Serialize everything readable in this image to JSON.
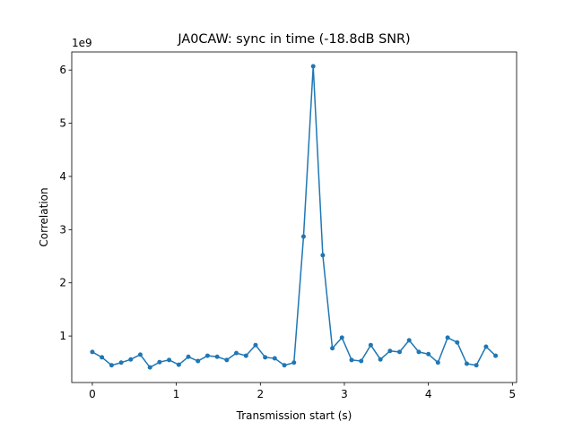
{
  "chart_data": {
    "type": "line",
    "title": "JA0CAW: sync in time (-18.8dB SNR)",
    "x_label": "Transmission start (s)",
    "y_label": "Correlation",
    "y_offset_label": "1e9",
    "x": [
      0,
      0.114,
      0.229,
      0.343,
      0.457,
      0.571,
      0.686,
      0.8,
      0.914,
      1.029,
      1.143,
      1.257,
      1.371,
      1.486,
      1.6,
      1.714,
      1.829,
      1.943,
      2.057,
      2.171,
      2.286,
      2.4,
      2.514,
      2.629,
      2.743,
      2.857,
      2.971,
      3.086,
      3.2,
      3.314,
      3.429,
      3.543,
      3.657,
      3.771,
      3.886,
      4.0,
      4.114,
      4.229,
      4.343,
      4.457,
      4.571,
      4.686,
      4.8
    ],
    "series": [
      {
        "name": "Correlation",
        "color": "#1f77b4",
        "values": [
          0.7,
          0.6,
          0.45,
          0.5,
          0.56,
          0.65,
          0.41,
          0.51,
          0.55,
          0.46,
          0.61,
          0.53,
          0.63,
          0.61,
          0.55,
          0.68,
          0.63,
          0.83,
          0.6,
          0.58,
          0.45,
          0.5,
          2.87,
          6.07,
          2.52,
          0.77,
          0.97,
          0.55,
          0.53,
          0.83,
          0.56,
          0.72,
          0.7,
          0.92,
          0.7,
          0.66,
          0.5,
          0.97,
          0.88,
          0.48,
          0.45,
          0.8,
          0.63
        ]
      }
    ],
    "xlim": [
      -0.245,
      5.05
    ],
    "ylim": [
      0.126,
      6.34
    ],
    "xticks": [
      0,
      1,
      2,
      3,
      4,
      5
    ],
    "yticks": [
      1,
      2,
      3,
      4,
      5,
      6
    ]
  }
}
